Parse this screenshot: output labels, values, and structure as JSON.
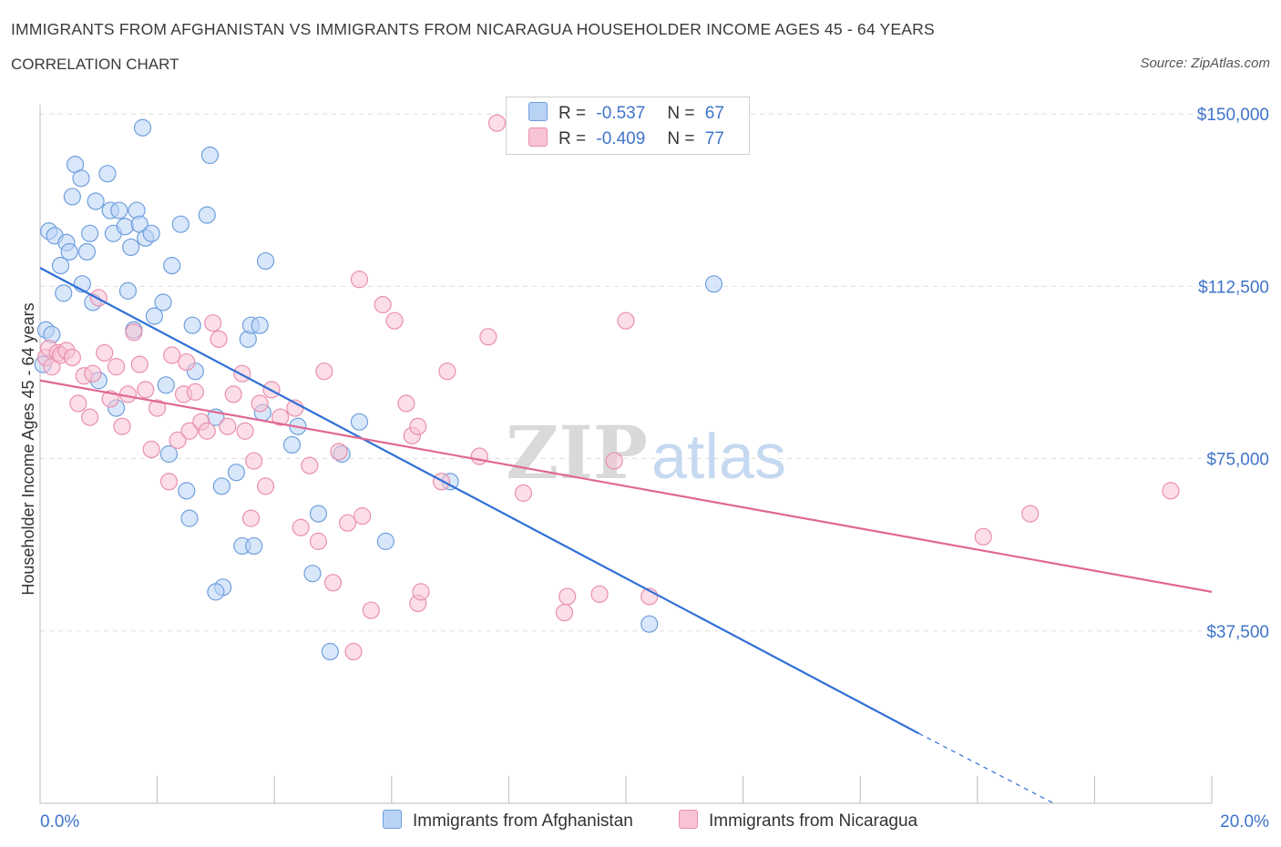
{
  "header": {
    "title": "IMMIGRANTS FROM AFGHANISTAN VS IMMIGRANTS FROM NICARAGUA HOUSEHOLDER INCOME AGES 45 - 64 YEARS",
    "subtitle": "CORRELATION CHART",
    "source": "Source: ZipAtlas.com"
  },
  "legend": {
    "series1": {
      "r_label": "R =",
      "r_value": "-0.537",
      "n_label": "N =",
      "n_value": "67"
    },
    "series2": {
      "r_label": "R =",
      "r_value": "-0.409",
      "n_label": "N =",
      "n_value": "77"
    }
  },
  "colors": {
    "afghanistan_fill": "#b9d3f5",
    "afghanistan_stroke": "#6f9fdd",
    "afghanistan_line": "#2f6fd6",
    "nicaragua_fill": "#f8c3d4",
    "nicaragua_stroke": "#ea8faf",
    "nicaragua_line": "#e06892",
    "tick_label": "#3f74c9",
    "grid": "#dddddd"
  },
  "chart_data": {
    "type": "scatter",
    "ylabel": "Householder Income Ages 45 - 64 years",
    "xlim": [
      0,
      20
    ],
    "ylim": [
      0,
      152000
    ],
    "x_tick_labels": [
      "0.0%",
      "20.0%"
    ],
    "y_ticks": [
      37500,
      75000,
      112500,
      150000
    ],
    "y_tick_labels": [
      "$37,500",
      "$75,000",
      "$112,500",
      "$150,000"
    ],
    "watermark": "ZIPatlas",
    "series": [
      {
        "name": "Immigrants from Afghanistan",
        "color": "#6f9fdd",
        "trend": {
          "x0": 0.0,
          "y0": 116500,
          "x1": 15.0,
          "y1": 15200,
          "dash_to_x": 17.3,
          "dash_to_y": 0
        },
        "points": [
          [
            0.05,
            95500
          ],
          [
            0.1,
            103000
          ],
          [
            0.15,
            124500
          ],
          [
            0.2,
            102000
          ],
          [
            0.25,
            123500
          ],
          [
            0.35,
            117000
          ],
          [
            0.4,
            111000
          ],
          [
            0.45,
            122000
          ],
          [
            0.5,
            120000
          ],
          [
            0.55,
            132000
          ],
          [
            0.6,
            139000
          ],
          [
            0.7,
            136000
          ],
          [
            0.72,
            113000
          ],
          [
            0.8,
            120000
          ],
          [
            0.85,
            124000
          ],
          [
            0.9,
            109000
          ],
          [
            0.95,
            131000
          ],
          [
            1.0,
            92000
          ],
          [
            1.15,
            137000
          ],
          [
            1.2,
            129000
          ],
          [
            1.25,
            124000
          ],
          [
            1.3,
            86000
          ],
          [
            1.35,
            129000
          ],
          [
            1.45,
            125500
          ],
          [
            1.5,
            111500
          ],
          [
            1.55,
            121000
          ],
          [
            1.6,
            103000
          ],
          [
            1.65,
            129000
          ],
          [
            1.7,
            126000
          ],
          [
            1.75,
            147000
          ],
          [
            1.8,
            123000
          ],
          [
            1.9,
            124000
          ],
          [
            1.95,
            106000
          ],
          [
            2.1,
            109000
          ],
          [
            2.15,
            91000
          ],
          [
            2.2,
            76000
          ],
          [
            2.25,
            117000
          ],
          [
            2.4,
            126000
          ],
          [
            2.5,
            68000
          ],
          [
            2.55,
            62000
          ],
          [
            2.6,
            104000
          ],
          [
            2.65,
            94000
          ],
          [
            2.85,
            128000
          ],
          [
            2.9,
            141000
          ],
          [
            3.0,
            84000
          ],
          [
            3.1,
            69000
          ],
          [
            3.12,
            47000
          ],
          [
            3.0,
            46000
          ],
          [
            3.35,
            72000
          ],
          [
            3.45,
            56000
          ],
          [
            3.55,
            101000
          ],
          [
            3.6,
            104000
          ],
          [
            3.65,
            56000
          ],
          [
            3.75,
            104000
          ],
          [
            3.8,
            85000
          ],
          [
            3.85,
            118000
          ],
          [
            4.3,
            78000
          ],
          [
            4.4,
            82000
          ],
          [
            4.65,
            50000
          ],
          [
            4.75,
            63000
          ],
          [
            4.95,
            33000
          ],
          [
            5.15,
            76000
          ],
          [
            5.45,
            83000
          ],
          [
            5.9,
            57000
          ],
          [
            7.0,
            70000
          ],
          [
            10.4,
            39000
          ],
          [
            11.5,
            113000
          ]
        ]
      },
      {
        "name": "Immigrants from Nicaragua",
        "color": "#ea8faf",
        "trend": {
          "x0": 0.0,
          "y0": 92000,
          "x1": 20.0,
          "y1": 46000
        },
        "points": [
          [
            0.1,
            97000
          ],
          [
            0.15,
            99000
          ],
          [
            0.2,
            95000
          ],
          [
            0.3,
            98000
          ],
          [
            0.35,
            97500
          ],
          [
            0.45,
            98500
          ],
          [
            0.55,
            97000
          ],
          [
            0.65,
            87000
          ],
          [
            0.75,
            93000
          ],
          [
            0.85,
            84000
          ],
          [
            0.9,
            93500
          ],
          [
            1.0,
            110000
          ],
          [
            1.1,
            98000
          ],
          [
            1.2,
            88000
          ],
          [
            1.3,
            95000
          ],
          [
            1.4,
            82000
          ],
          [
            1.5,
            89000
          ],
          [
            1.6,
            102500
          ],
          [
            1.7,
            95500
          ],
          [
            1.8,
            90000
          ],
          [
            1.9,
            77000
          ],
          [
            2.0,
            86000
          ],
          [
            2.2,
            70000
          ],
          [
            2.25,
            97500
          ],
          [
            2.35,
            79000
          ],
          [
            2.45,
            89000
          ],
          [
            2.5,
            96000
          ],
          [
            2.55,
            81000
          ],
          [
            2.65,
            89500
          ],
          [
            2.75,
            83000
          ],
          [
            2.85,
            81000
          ],
          [
            2.95,
            104500
          ],
          [
            3.05,
            101000
          ],
          [
            3.2,
            82000
          ],
          [
            3.3,
            89000
          ],
          [
            3.45,
            93500
          ],
          [
            3.5,
            81000
          ],
          [
            3.6,
            62000
          ],
          [
            3.65,
            74500
          ],
          [
            3.75,
            87000
          ],
          [
            3.85,
            69000
          ],
          [
            3.95,
            90000
          ],
          [
            4.1,
            84000
          ],
          [
            4.35,
            86000
          ],
          [
            4.45,
            60000
          ],
          [
            4.6,
            73500
          ],
          [
            4.75,
            57000
          ],
          [
            4.85,
            94000
          ],
          [
            5.0,
            48000
          ],
          [
            5.1,
            76500
          ],
          [
            5.25,
            61000
          ],
          [
            5.35,
            33000
          ],
          [
            5.45,
            114000
          ],
          [
            5.5,
            62500
          ],
          [
            5.65,
            42000
          ],
          [
            5.85,
            108500
          ],
          [
            6.05,
            105000
          ],
          [
            6.25,
            87000
          ],
          [
            6.35,
            80000
          ],
          [
            6.45,
            82000
          ],
          [
            6.45,
            43500
          ],
          [
            6.5,
            46000
          ],
          [
            6.85,
            70000
          ],
          [
            6.95,
            94000
          ],
          [
            7.5,
            75500
          ],
          [
            7.65,
            101500
          ],
          [
            7.8,
            148000
          ],
          [
            8.25,
            67500
          ],
          [
            8.95,
            41500
          ],
          [
            9.0,
            45000
          ],
          [
            9.55,
            45500
          ],
          [
            9.8,
            74500
          ],
          [
            10.0,
            105000
          ],
          [
            10.4,
            45000
          ],
          [
            16.1,
            58000
          ],
          [
            16.9,
            63000
          ],
          [
            19.3,
            68000
          ]
        ]
      }
    ]
  }
}
